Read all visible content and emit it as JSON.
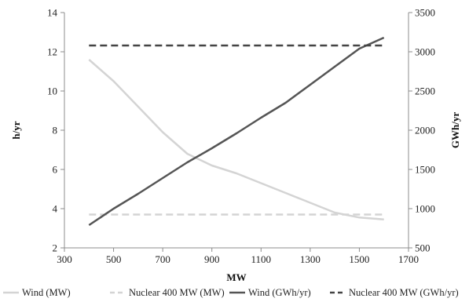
{
  "chart_data": {
    "type": "line",
    "title": "",
    "xlabel": "MW",
    "ylabel_left": "h/yr",
    "ylabel_right": "GWh/yr",
    "x_ticks": [
      300,
      500,
      700,
      900,
      1100,
      1300,
      1500,
      1700
    ],
    "y_left_ticks": [
      2,
      4,
      6,
      8,
      10,
      12,
      14
    ],
    "y_right_ticks": [
      500,
      1000,
      1500,
      2000,
      2500,
      3000,
      3500
    ],
    "xlim": [
      300,
      1700
    ],
    "ylim_left": [
      2,
      14
    ],
    "ylim_right": [
      500,
      3500
    ],
    "grid": false,
    "legend_position": "bottom",
    "series": [
      {
        "name": "Wind (MW)",
        "axis": "left",
        "color": "#d4d4d4",
        "dash": "solid",
        "x": [
          400,
          500,
          600,
          700,
          800,
          900,
          1000,
          1100,
          1200,
          1300,
          1400,
          1500,
          1600
        ],
        "y": [
          11.6,
          10.5,
          9.2,
          7.9,
          6.8,
          6.2,
          5.8,
          5.3,
          4.8,
          4.3,
          3.8,
          3.55,
          3.45
        ]
      },
      {
        "name": "Nuclear 400 MW (MW)",
        "axis": "left",
        "color": "#d4d4d4",
        "dash": "dashed",
        "x": [
          400,
          1600
        ],
        "y": [
          3.7,
          3.7
        ]
      },
      {
        "name": "Wind (GWh/yr)",
        "axis": "right",
        "color": "#555555",
        "dash": "solid",
        "x": [
          400,
          500,
          600,
          700,
          800,
          900,
          1000,
          1100,
          1200,
          1300,
          1400,
          1500,
          1600
        ],
        "y": [
          790,
          1000,
          1190,
          1390,
          1590,
          1770,
          1960,
          2160,
          2350,
          2580,
          2810,
          3040,
          3180
        ]
      },
      {
        "name": "Nuclear 400 MW (GWh/yr)",
        "axis": "right",
        "color": "#444444",
        "dash": "dashed",
        "x": [
          400,
          1600
        ],
        "y": [
          3080,
          3080
        ]
      }
    ]
  }
}
